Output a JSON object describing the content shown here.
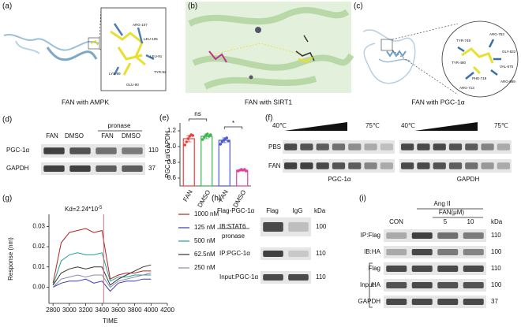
{
  "panels": {
    "a": {
      "label": "(a)",
      "caption": "FAN with AMPK",
      "residues": [
        "ARG-107",
        "LEU-105",
        "LEU-91",
        "TYR-92",
        "LYS-89",
        "GLU-90"
      ]
    },
    "b": {
      "label": "(b)",
      "caption": "FAN with SIRT1"
    },
    "c": {
      "label": "(c)",
      "caption": "FAN with PGC-1α",
      "residues": [
        "TYR-749",
        "ARG-753",
        "GLY-822",
        "VAL-675",
        "TYR-480",
        "PHE-719",
        "ARG-713",
        "ARG-669"
      ]
    },
    "d": {
      "label": "(d)",
      "lanes": [
        "FAN",
        "DMSO",
        "FAN",
        "DMSO"
      ],
      "treatment": "pronase",
      "rows": [
        "PGC-1α",
        "GAPDH"
      ],
      "kda": [
        110,
        37
      ]
    },
    "e": {
      "label": "(e)"
    },
    "f": {
      "label": "(f)",
      "temp_low": "40℃",
      "temp_high": "75℃",
      "rows": [
        "PBS",
        "FAN"
      ],
      "blots": [
        "PGC-1α",
        "GAPDH"
      ]
    },
    "g": {
      "label": "(g)"
    },
    "h": {
      "label": "(h)",
      "header": "Flag-PGC-1α",
      "lanes": [
        "Flag",
        "IgG"
      ],
      "kda_header": "kDa",
      "rows": [
        "IB:STAT6",
        "IP:PGC-1α",
        "Input:PGC-1α"
      ],
      "kda": [
        100,
        110,
        110
      ]
    },
    "i": {
      "label": "(i)",
      "treatment": "Ang II",
      "dose": "FAN(μM)",
      "lanes": [
        "CON",
        "5",
        "10"
      ],
      "kda_header": "kDa",
      "rows": [
        "IP:Flag",
        "IB:HA",
        "Flag",
        "HA",
        "GAPDH"
      ],
      "kda": [
        110,
        100,
        110,
        100,
        37
      ],
      "input": "Input"
    }
  },
  "chart_data": [
    {
      "type": "bar",
      "ylabel": "PGC-1α/GAPDH",
      "categories": [
        "FAN",
        "DMSO",
        "FAN",
        "DMSO"
      ],
      "group_label": "pronase",
      "values": [
        1.1,
        1.13,
        1.08,
        0.7
      ],
      "errors": [
        0.04,
        0.03,
        0.03,
        0.01
      ],
      "points": [
        [
          1.02,
          1.06,
          1.1,
          1.13,
          1.15,
          1.14
        ],
        [
          1.09,
          1.12,
          1.14,
          1.16,
          1.13,
          1.15
        ],
        [
          1.03,
          1.06,
          1.08,
          1.1,
          1.11,
          1.07
        ],
        [
          0.69,
          0.7,
          0.71,
          0.7,
          0.71,
          0.69
        ]
      ],
      "colors": [
        "#e8413c",
        "#3cb44b",
        "#4a5bd4",
        "#e040a0"
      ],
      "annotations": [
        "ns",
        "*"
      ],
      "ylim": [
        0.5,
        1.3
      ],
      "yticks": [
        0.6,
        0.8,
        {
          "value": 1,
          "label": "1.0"
        },
        1.2
      ]
    },
    {
      "type": "line",
      "annotation": "Kd=2.24*10",
      "annotation_exponent": "-5",
      "xlabel": "TIME",
      "ylabel": "Response (nm)",
      "x": [
        2800,
        2900,
        3000,
        3100,
        3200,
        3300,
        3400,
        3500,
        3600,
        3700,
        3800,
        3900,
        4000
      ],
      "series": [
        {
          "name": "1000 nM",
          "color": "#b22222",
          "values": [
            0.002,
            0.022,
            0.027,
            0.028,
            0.029,
            0.027,
            0.028,
            0.004,
            0.006,
            0.007,
            0.007,
            0.008,
            0.008
          ]
        },
        {
          "name": "125 nM",
          "color": "#3a3ab0",
          "values": [
            0.0,
            0.002,
            0.003,
            0.003,
            0.004,
            0.002,
            0.003,
            -0.002,
            0.002,
            0.003,
            0.003,
            0.004,
            0.004
          ]
        },
        {
          "name": "500 nM",
          "color": "#20a090",
          "values": [
            0.001,
            0.013,
            0.016,
            0.017,
            0.016,
            0.016,
            0.017,
            0.003,
            0.005,
            0.005,
            0.006,
            0.006,
            0.006
          ]
        },
        {
          "name": "62.5nM",
          "color": "#333333",
          "values": [
            0.001,
            0.007,
            0.009,
            0.01,
            0.009,
            0.01,
            0.01,
            0.001,
            0.004,
            0.006,
            0.008,
            0.01,
            0.011
          ]
        },
        {
          "name": "250 nM",
          "color": "#8a8ab0",
          "values": [
            0.0,
            0.004,
            0.005,
            0.006,
            0.005,
            0.006,
            0.006,
            0.0,
            0.003,
            0.004,
            0.005,
            0.006,
            0.007
          ]
        }
      ],
      "xlim": [
        2750,
        4200
      ],
      "xticks": [
        2800,
        3000,
        3200,
        3400,
        3600,
        3800,
        4000,
        4200
      ],
      "ylim": [
        -0.008,
        0.036
      ],
      "yticks": [
        {
          "value": 0,
          "label": "0.00"
        },
        0.01,
        0.02,
        0.03
      ]
    }
  ]
}
